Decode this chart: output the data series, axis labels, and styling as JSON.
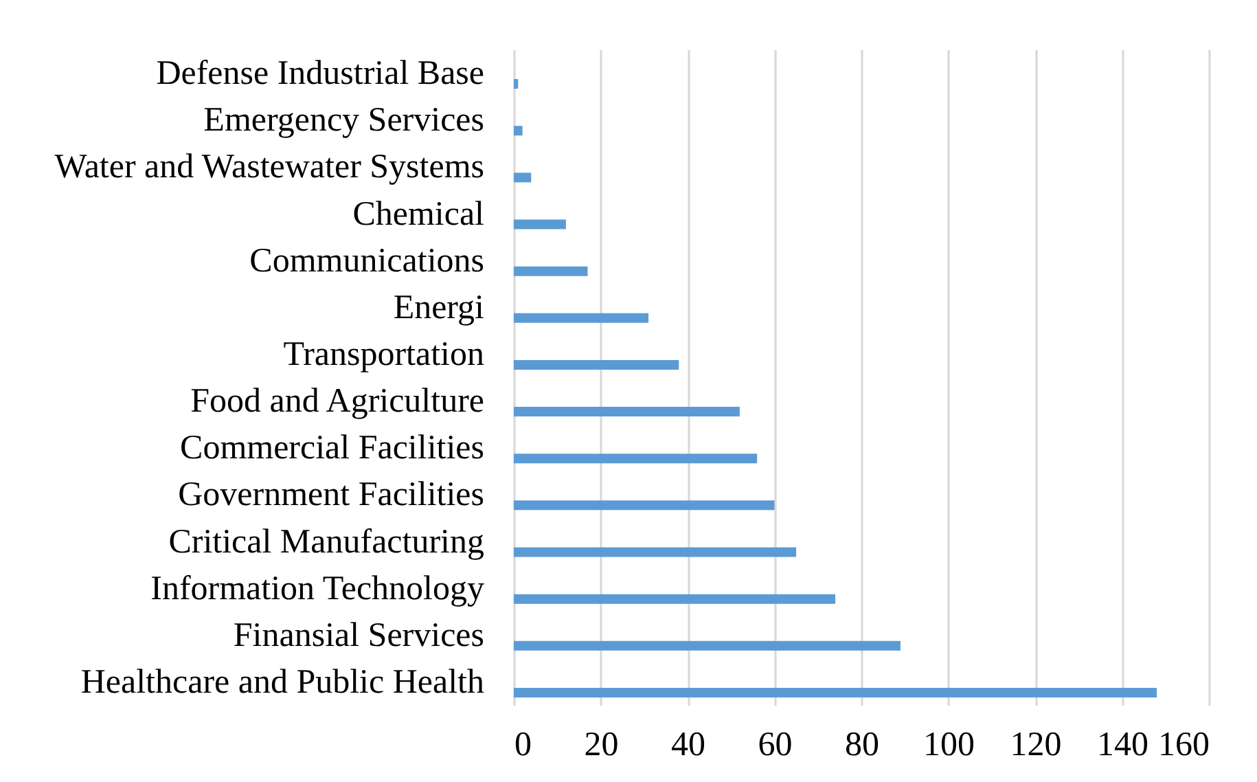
{
  "chart_data": {
    "type": "bar",
    "orientation": "horizontal",
    "categories": [
      "Defense Industrial Base",
      "Emergency Services",
      "Water and Wastewater Systems",
      "Chemical",
      "Communications",
      "Energi",
      "Transportation",
      "Food and Agriculture",
      "Commercial Facilities",
      "Government Facilities",
      "Critical Manufacturing",
      "Information Technology",
      "Finansial Services",
      "Healthcare and Public Health"
    ],
    "values": [
      1,
      2,
      4,
      12,
      17,
      31,
      38,
      52,
      56,
      60,
      65,
      74,
      89,
      148
    ],
    "color": "#5b9bd5",
    "xlim": [
      0,
      160
    ],
    "xticks": [
      0,
      20,
      40,
      60,
      80,
      100,
      120,
      140,
      160
    ],
    "grid": "x"
  }
}
